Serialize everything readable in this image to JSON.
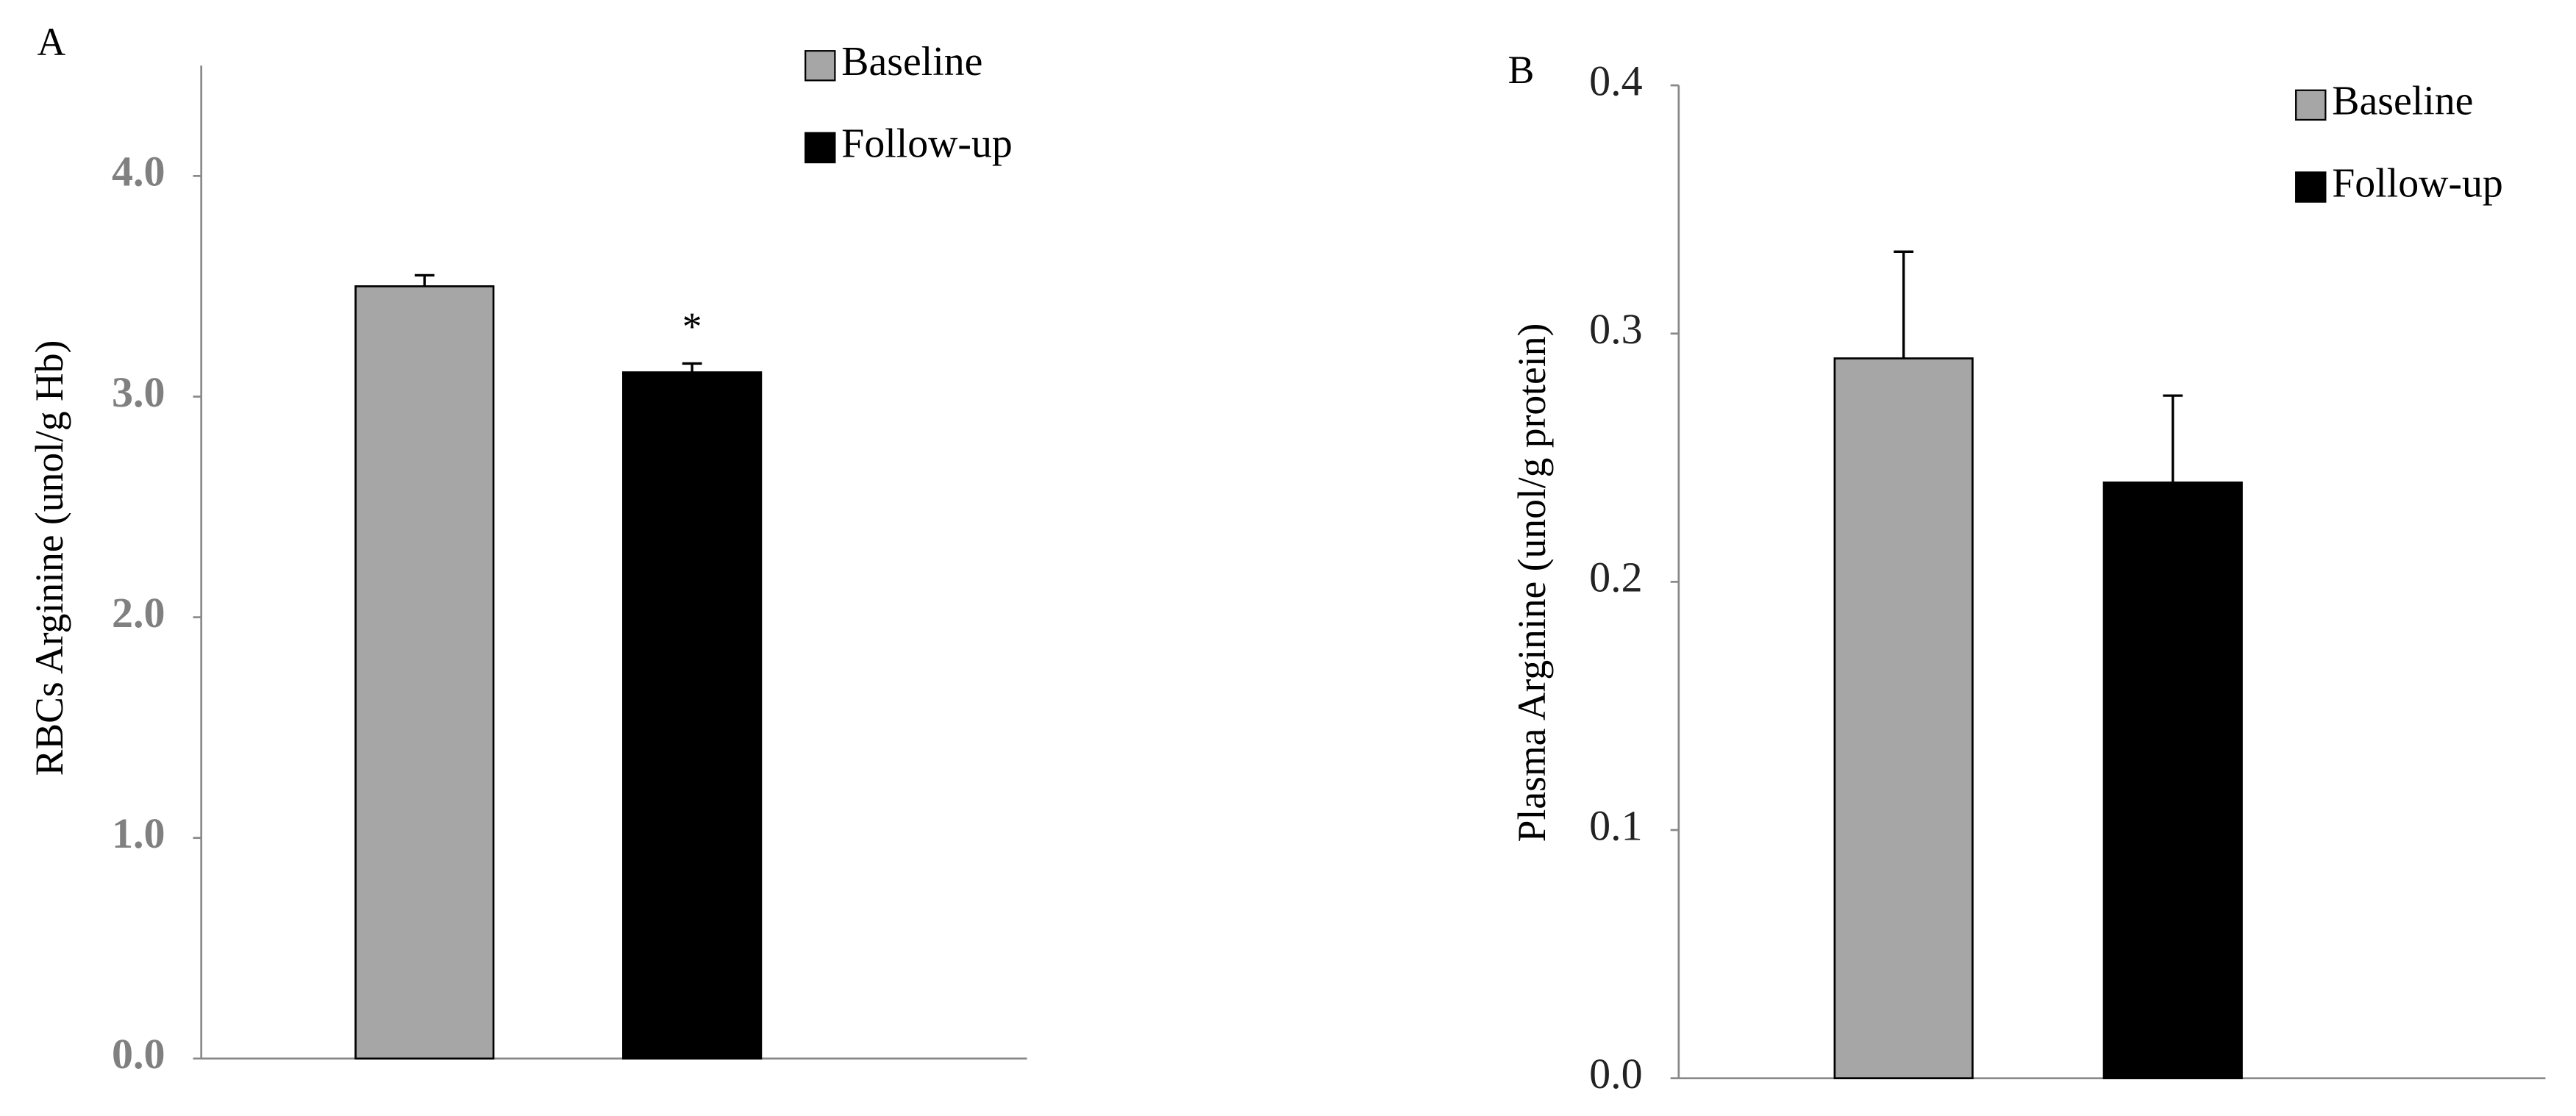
{
  "chart_data": [
    {
      "type": "bar",
      "panel_label": "A",
      "ylabel": "RBCs Arginine (unol/g Hb)",
      "ylim": [
        0,
        4.5
      ],
      "yticks": [
        {
          "value": 0,
          "label": "0.0"
        },
        {
          "value": 1,
          "label": "1.0"
        },
        {
          "value": 2,
          "label": "2.0"
        },
        {
          "value": 3,
          "label": "3.0"
        },
        {
          "value": 4,
          "label": "4.0"
        }
      ],
      "series": [
        {
          "name": "Baseline",
          "color": "#a6a6a6",
          "values": [
            3.5
          ],
          "errors": [
            0.05
          ]
        },
        {
          "name": "Follow-up",
          "color": "#000000",
          "values": [
            3.11
          ],
          "errors": [
            0.04
          ]
        }
      ],
      "annotations": [
        {
          "text": "*",
          "series": 1
        }
      ],
      "legend": "upper right",
      "tick_color": "#808080"
    },
    {
      "type": "bar",
      "panel_label": "B",
      "ylabel": "Plasma Arginine (unol/g protein)",
      "ylim": [
        0,
        0.4
      ],
      "yticks": [
        {
          "value": 0,
          "label": "0.0"
        },
        {
          "value": 0.1,
          "label": "0.1"
        },
        {
          "value": 0.2,
          "label": "0.2"
        },
        {
          "value": 0.3,
          "label": "0.3"
        },
        {
          "value": 0.4,
          "label": "0.4"
        }
      ],
      "series": [
        {
          "name": "Baseline",
          "color": "#a6a6a6",
          "values": [
            0.29
          ],
          "errors": [
            0.043
          ]
        },
        {
          "name": "Follow-up",
          "color": "#000000",
          "values": [
            0.24
          ],
          "errors": [
            0.035
          ]
        }
      ],
      "legend": "upper right",
      "tick_color": "#222222"
    }
  ]
}
